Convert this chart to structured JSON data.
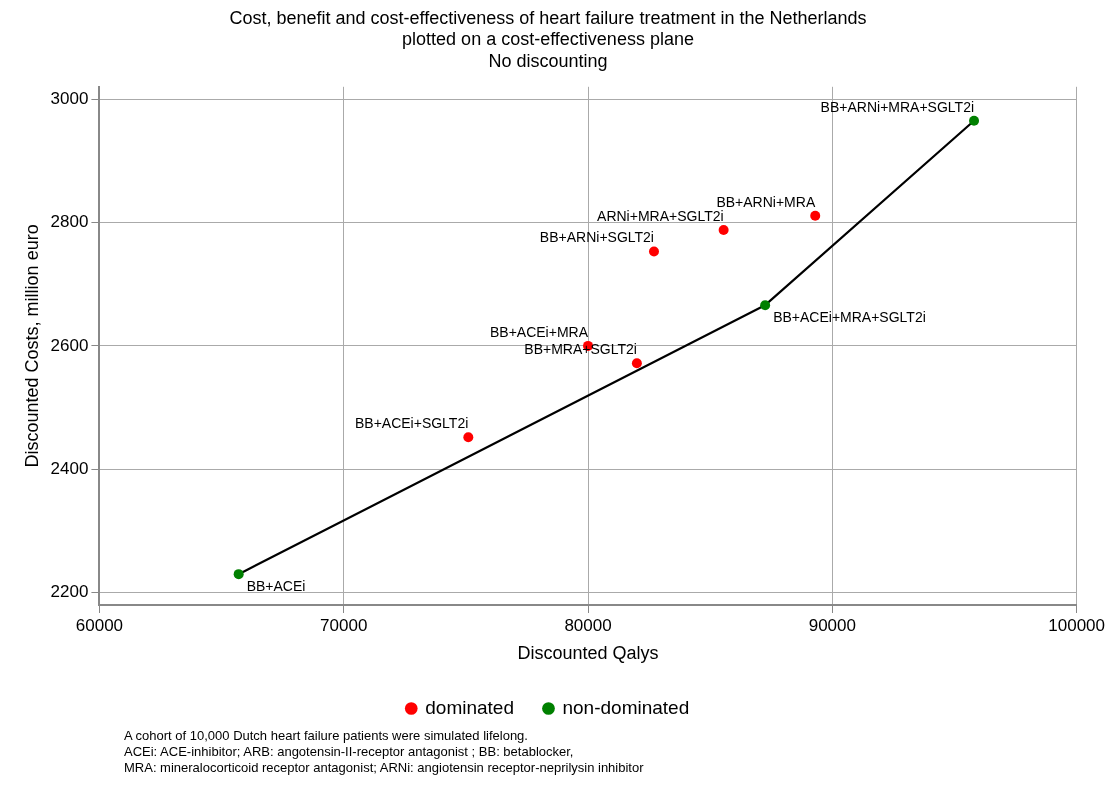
{
  "chart_data": {
    "type": "scatter",
    "title": "Cost, benefit and cost-effectiveness of heart failure treatment in the Netherlands\nplotted on a cost-effectiveness plane",
    "subtitle": "No discounting",
    "xlabel": "Discounted Qalys",
    "ylabel": "Discounted Costs, million euro",
    "xlim": [
      60000,
      100000
    ],
    "xticks": [
      60000,
      70000,
      80000,
      90000,
      100000
    ],
    "ylim": [
      2180,
      3020
    ],
    "yticks": [
      2200,
      2400,
      2600,
      2800,
      3000
    ],
    "grid": true,
    "legend": "bottom",
    "marker": "circle",
    "series": [
      {
        "type": "line",
        "color": "#000000",
        "x": [
          65700,
          87250,
          95800
        ],
        "values": [
          2230,
          2666,
          2965
        ],
        "marker": "none",
        "line_style": "solid"
      },
      {
        "name": "dominated",
        "color": "#ff0000",
        "x": [
          75100,
          80000,
          82000,
          82700,
          85550,
          89300
        ],
        "values": [
          2452,
          2600,
          2572,
          2753,
          2788,
          2811
        ]
      },
      {
        "name": "non-dominated",
        "color": "#008000",
        "x": [
          65700,
          87250,
          95800
        ],
        "values": [
          2230,
          2666,
          2965
        ]
      }
    ],
    "annotations": [
      {
        "text": "BB+ACEi",
        "x": 65700,
        "y": 2230
      },
      {
        "text": "BB+ACEi+SGLT2i",
        "x": 75100,
        "y": 2452
      },
      {
        "text": "BB+ACEi+MRA",
        "x": 80000,
        "y": 2600
      },
      {
        "text": "BB+MRA+SGLT2i",
        "x": 82000,
        "y": 2572
      },
      {
        "text": "BB+ARNi+SGLT2i",
        "x": 82700,
        "y": 2753
      },
      {
        "text": "ARNi+MRA+SGLT2i",
        "x": 85550,
        "y": 2788
      },
      {
        "text": "BB+ARNi+MRA",
        "x": 89300,
        "y": 2811
      },
      {
        "text": "BB+ACEi+MRA+SGLT2i",
        "x": 87250,
        "y": 2666
      },
      {
        "text": "BB+ARNi+MRA+SGLT2i",
        "x": 95800,
        "y": 2965
      },
      "A cohort of 10,000 Dutch heart failure patients were simulated lifelong.",
      "ACEi: ACE-inhibitor; ARB: angotensin-II-receptor antagonist ; BB: betablocker,",
      "MRA: mineralocorticoid receptor antagonist; ARNi: angiotensin receptor-neprilysin inhibitor"
    ]
  }
}
